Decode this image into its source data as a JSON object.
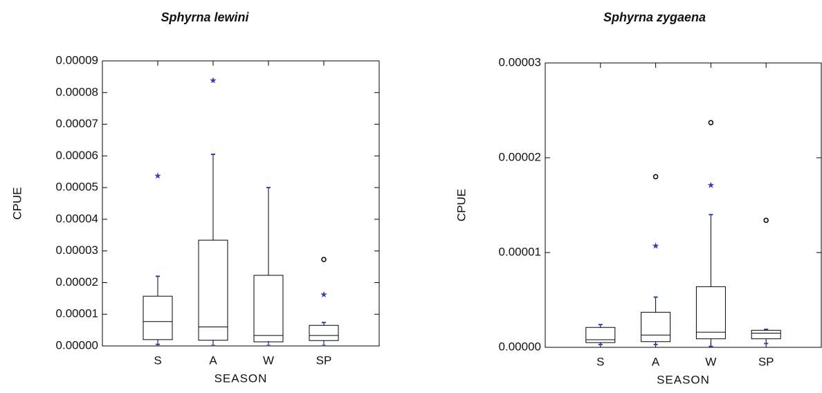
{
  "chart_data": [
    {
      "type": "box",
      "title": "Sphyrna lewini",
      "xlabel": "SEASON",
      "ylabel": "CPUE",
      "categories": [
        "S",
        "A",
        "W",
        "SP"
      ],
      "whisker_low": [
        5e-07,
        1e-07,
        1e-07,
        1e-07
      ],
      "q1": [
        2e-06,
        1.8e-06,
        1.3e-06,
        1.7e-06
      ],
      "median": [
        7.7e-06,
        6e-06,
        3.3e-06,
        3.3e-06
      ],
      "q3": [
        1.57e-05,
        3.34e-05,
        2.23e-05,
        6.5e-06
      ],
      "whisker_high": [
        2.2e-05,
        6.05e-05,
        5e-05,
        7.4e-06
      ],
      "outliers": [
        {
          "category": "S",
          "value": 5.37e-05,
          "kind": "star"
        },
        {
          "category": "A",
          "value": 8.38e-05,
          "kind": "star"
        },
        {
          "category": "SP",
          "value": 2.73e-05,
          "kind": "circle"
        },
        {
          "category": "SP",
          "value": 1.62e-05,
          "kind": "star"
        }
      ],
      "box_color": "#000000",
      "star_color": "#3040c0",
      "ylim": [
        0,
        9e-05
      ],
      "yticks": [
        {
          "value": 0,
          "label": "0.00000"
        },
        {
          "value": 1e-05,
          "label": "0.00001"
        },
        {
          "value": 2e-05,
          "label": "0.00002"
        },
        {
          "value": 3e-05,
          "label": "0.00003"
        },
        {
          "value": 4e-05,
          "label": "0.00004"
        },
        {
          "value": 5e-05,
          "label": "0.00005"
        },
        {
          "value": 6e-05,
          "label": "0.00006"
        },
        {
          "value": 7e-05,
          "label": "0.00007"
        },
        {
          "value": 8e-05,
          "label": "0.00008"
        },
        {
          "value": 9e-05,
          "label": "0.00009"
        }
      ]
    },
    {
      "type": "box",
      "title": "Sphyrna zygaena",
      "xlabel": "SEASON",
      "ylabel": "CPUE",
      "categories": [
        "S",
        "A",
        "W",
        "SP"
      ],
      "whisker_low": [
        3e-07,
        3e-07,
        1e-07,
        4e-07
      ],
      "q1": [
        5e-07,
        6e-07,
        9e-07,
        9e-07
      ],
      "median": [
        8e-07,
        1.3e-06,
        1.6e-06,
        1.5e-06
      ],
      "q3": [
        2.1e-06,
        3.7e-06,
        6.4e-06,
        1.8e-06
      ],
      "whisker_high": [
        2.4e-06,
        5.3e-06,
        1.4e-05,
        1.9e-06
      ],
      "outliers": [
        {
          "category": "A",
          "value": 1.8e-05,
          "kind": "circle"
        },
        {
          "category": "A",
          "value": 1.07e-05,
          "kind": "star"
        },
        {
          "category": "W",
          "value": 2.37e-05,
          "kind": "circle"
        },
        {
          "category": "W",
          "value": 1.71e-05,
          "kind": "star"
        },
        {
          "category": "SP",
          "value": 1.34e-05,
          "kind": "circle"
        }
      ],
      "box_color": "#000000",
      "star_color": "#3040c0",
      "ylim": [
        0,
        3e-05
      ],
      "yticks": [
        {
          "value": 0,
          "label": "0.00000"
        },
        {
          "value": 1e-05,
          "label": "0.00001"
        },
        {
          "value": 2e-05,
          "label": "0.00002"
        },
        {
          "value": 3e-05,
          "label": "0.00003"
        }
      ]
    }
  ]
}
